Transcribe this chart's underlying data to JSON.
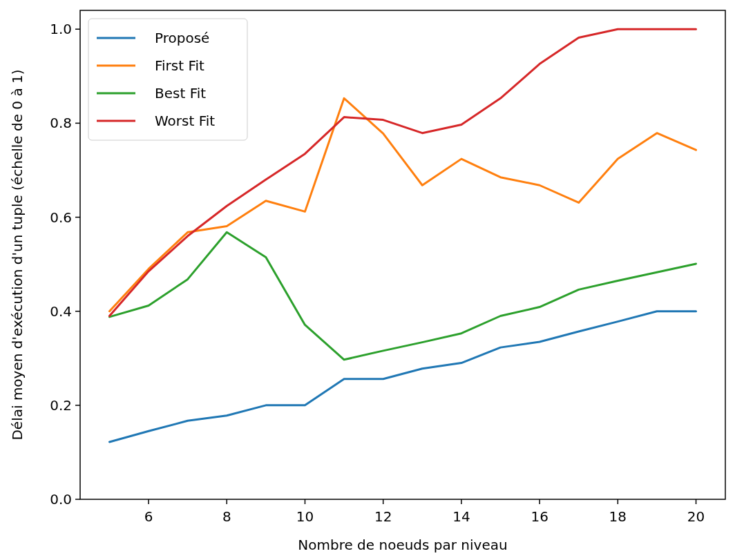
{
  "chart_data": {
    "type": "line",
    "xlabel": "Nombre de noeuds par niveau",
    "ylabel": "Délai moyen d'exécution d'un tuple (échelle de 0 à 1)",
    "x": [
      5,
      6,
      7,
      8,
      9,
      10,
      11,
      12,
      13,
      14,
      15,
      16,
      17,
      18,
      19,
      20
    ],
    "xlim": [
      4.25,
      20.75
    ],
    "xticks": [
      6,
      8,
      10,
      12,
      14,
      16,
      18,
      20
    ],
    "ylim": [
      0,
      1.04
    ],
    "yticks": [
      {
        "value": 0,
        "label": "0.0"
      },
      0.2,
      0.4,
      0.6,
      0.8,
      {
        "value": 1,
        "label": "1.0"
      }
    ],
    "legend": "top left",
    "grid": false,
    "marker": "none",
    "line_style": "solid",
    "series": [
      {
        "name": "Proposé",
        "color": "#1f77b4",
        "values": [
          0.122,
          0.145,
          0.167,
          0.178,
          0.2,
          0.2,
          0.256,
          0.256,
          0.278,
          0.29,
          0.323,
          0.335,
          0.357,
          0.378,
          0.4,
          0.4
        ]
      },
      {
        "name": "First Fit",
        "color": "#ff7f0e",
        "values": [
          0.4,
          0.49,
          0.568,
          0.581,
          0.635,
          0.612,
          0.853,
          0.778,
          0.668,
          0.724,
          0.685,
          0.668,
          0.631,
          0.724,
          0.779,
          0.743
        ]
      },
      {
        "name": "Best Fit",
        "color": "#2ca02c",
        "values": [
          0.388,
          0.412,
          0.468,
          0.568,
          0.515,
          0.371,
          0.297,
          0.316,
          0.334,
          0.353,
          0.39,
          0.409,
          0.446,
          0.465,
          0.483,
          0.501
        ]
      },
      {
        "name": "Worst Fit",
        "color": "#d62728",
        "values": [
          0.39,
          0.485,
          0.56,
          0.624,
          0.68,
          0.735,
          0.813,
          0.807,
          0.779,
          0.797,
          0.853,
          0.926,
          0.982,
          1.0,
          1.0,
          1.0
        ]
      }
    ]
  }
}
